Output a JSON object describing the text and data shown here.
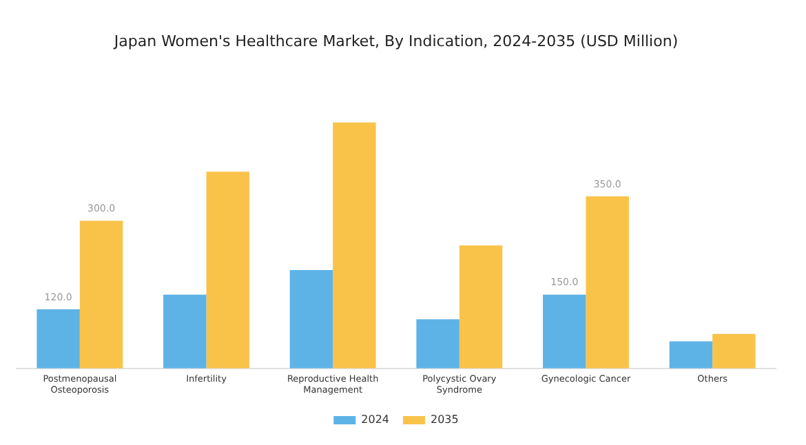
{
  "chart_data": {
    "type": "bar",
    "title": "Japan Women's Healthcare Market, By Indication, 2024-2035 (USD Million)",
    "categories": [
      "Postmenopausal Osteoporosis",
      "Infertility",
      "Reproductive Health Management",
      "Polycystic Ovary Syndrome",
      "Gynecologic Cancer",
      "Others"
    ],
    "series": [
      {
        "name": "2024",
        "color": "#5db3e6",
        "values": [
          120,
          150,
          200,
          100,
          150,
          55
        ],
        "value_labels": [
          "120.0",
          null,
          null,
          null,
          "150.0",
          null
        ]
      },
      {
        "name": "2035",
        "color": "#f9c34a",
        "values": [
          300,
          400,
          500,
          250,
          350,
          70
        ],
        "value_labels": [
          "300.0",
          null,
          null,
          null,
          "350.0",
          null
        ]
      }
    ],
    "legend": "bottom",
    "grid": false
  }
}
